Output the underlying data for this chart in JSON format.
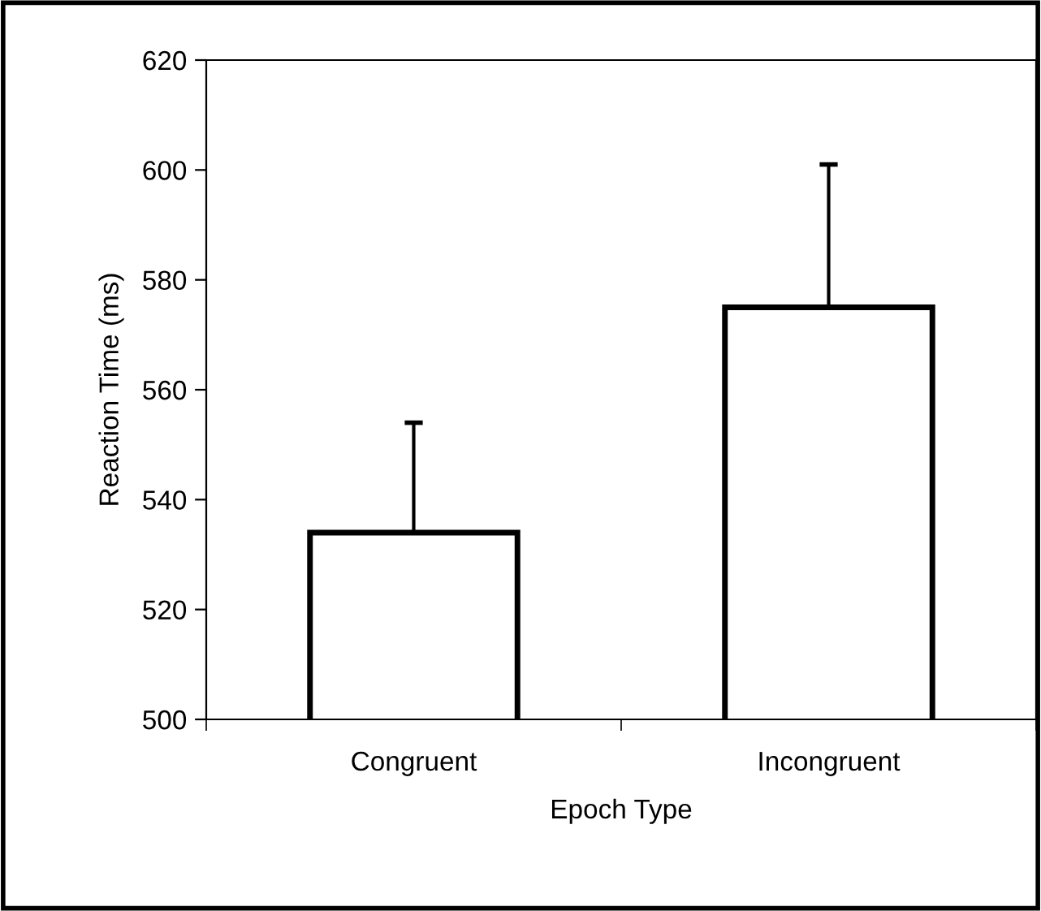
{
  "chart_data": {
    "type": "bar",
    "xlabel": "Epoch Type",
    "ylabel": "Reaction Time (ms)",
    "categories": [
      "Congruent",
      "Incongruent"
    ],
    "values": [
      534,
      575
    ],
    "errors": [
      [
        534,
        554
      ],
      [
        575,
        601
      ]
    ],
    "color": "#ffffff",
    "ylim": [
      500,
      620
    ],
    "yticks": [
      500,
      520,
      540,
      560,
      580,
      600,
      620
    ],
    "grid": false,
    "legend": false
  }
}
